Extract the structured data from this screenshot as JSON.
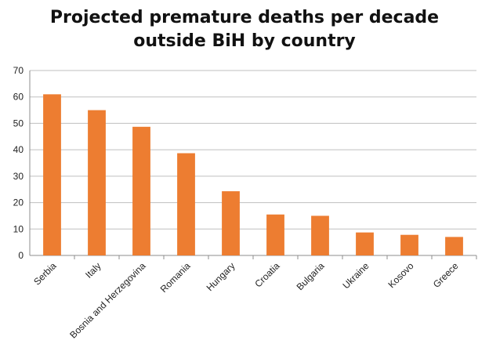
{
  "chart_data": {
    "type": "bar",
    "title_lines": [
      "Projected premature deaths per decade",
      "outside BiH by country"
    ],
    "xlabel": "",
    "ylabel": "",
    "categories": [
      "Serbia",
      "Italy",
      "Bosnia and Herzegovina",
      "Romania",
      "Hungary",
      "Croatia",
      "Bulgaria",
      "Ukraine",
      "Kosovo",
      "Greece"
    ],
    "values": [
      61,
      55,
      48.7,
      38.7,
      24.3,
      15.5,
      15,
      8.7,
      7.8,
      7
    ],
    "ylim": [
      0,
      70
    ],
    "yticks": [
      0,
      10,
      20,
      30,
      40,
      50,
      60,
      70
    ],
    "grid": true,
    "legend": "none",
    "bar_color": "#ED7D31",
    "grid_color": "#BFBFBF"
  }
}
